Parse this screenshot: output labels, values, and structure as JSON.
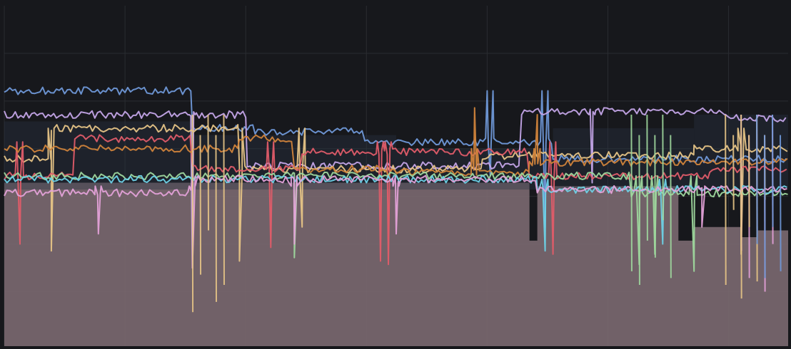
{
  "chart_data": {
    "type": "area",
    "grid": true,
    "legend": "none",
    "background": "#17181c",
    "grid_color": "#2a2c31",
    "fill_color": "#7a686f",
    "x_range": [
      0,
      100
    ],
    "y_range": [
      0,
      100
    ],
    "series": [
      {
        "color": "#6f98d8",
        "baseline": 75,
        "segments": [
          [
            0,
            24,
            75
          ],
          [
            24,
            32,
            64
          ],
          [
            32,
            46,
            63
          ],
          [
            46,
            70,
            60
          ],
          [
            70,
            100,
            55
          ]
        ],
        "spikes": [
          [
            62,
            50
          ],
          [
            69,
            35
          ]
        ]
      },
      {
        "color": "#c4a5e8",
        "baseline": 68,
        "segments": [
          [
            0,
            31,
            68
          ],
          [
            31,
            66,
            53
          ],
          [
            66,
            92,
            69
          ],
          [
            92,
            100,
            67
          ]
        ],
        "spikes": [
          [
            24,
            23
          ],
          [
            75,
            48
          ]
        ]
      },
      {
        "color": "#e6c486",
        "baseline": 64,
        "segments": [
          [
            0,
            6,
            55
          ],
          [
            6,
            30,
            64
          ],
          [
            30,
            61,
            52
          ],
          [
            61,
            88,
            56
          ],
          [
            88,
            100,
            58
          ]
        ],
        "spikes": [
          [
            6,
            28
          ],
          [
            30,
            25
          ],
          [
            38,
            35
          ],
          [
            94,
            27
          ]
        ]
      },
      {
        "color": "#e05c69",
        "baseline": 60,
        "segments": [
          [
            0,
            9,
            50
          ],
          [
            9,
            24,
            61
          ],
          [
            24,
            38,
            52
          ],
          [
            38,
            67,
            57
          ],
          [
            67,
            90,
            50
          ],
          [
            90,
            100,
            52
          ]
        ],
        "spikes": [
          [
            2,
            30
          ],
          [
            34,
            29
          ],
          [
            48,
            25
          ],
          [
            49,
            24
          ],
          [
            70,
            27
          ]
        ]
      },
      {
        "color": "#d1843b",
        "baseline": 58,
        "segments": [
          [
            0,
            30,
            58
          ],
          [
            30,
            37,
            61
          ],
          [
            37,
            48,
            52
          ],
          [
            48,
            67,
            51
          ],
          [
            67,
            100,
            54
          ]
        ],
        "spikes": [
          [
            60,
            70
          ],
          [
            68,
            68
          ]
        ]
      },
      {
        "color": "#9ed79d",
        "baseline": 50,
        "segments": [
          [
            0,
            12,
            50
          ],
          [
            12,
            37,
            50
          ],
          [
            37,
            80,
            50
          ],
          [
            80,
            100,
            45
          ]
        ],
        "spikes": [
          [
            37,
            26
          ],
          [
            81,
            24
          ],
          [
            83,
            27
          ],
          [
            88,
            22
          ]
        ]
      },
      {
        "color": "#6dd1e6",
        "baseline": 49,
        "segments": [
          [
            0,
            68,
            49
          ],
          [
            68,
            100,
            46
          ]
        ],
        "spikes": [
          [
            69,
            28
          ],
          [
            84,
            30
          ]
        ]
      },
      {
        "color": "#e3a1d8",
        "baseline": 47,
        "segments": [
          [
            0,
            24,
            45
          ],
          [
            24,
            68,
            49
          ],
          [
            68,
            100,
            46
          ]
        ],
        "spikes": [
          [
            12,
            33
          ],
          [
            24,
            23
          ],
          [
            37,
            30
          ],
          [
            50,
            33
          ],
          [
            89,
            35
          ]
        ]
      }
    ],
    "fill_segments": [
      [
        0,
        67,
        48
      ],
      [
        67,
        68,
        31
      ],
      [
        68,
        86,
        47
      ],
      [
        86,
        88,
        31
      ],
      [
        88,
        94,
        35
      ],
      [
        94,
        96,
        32
      ],
      [
        96,
        100,
        34
      ]
    ]
  }
}
